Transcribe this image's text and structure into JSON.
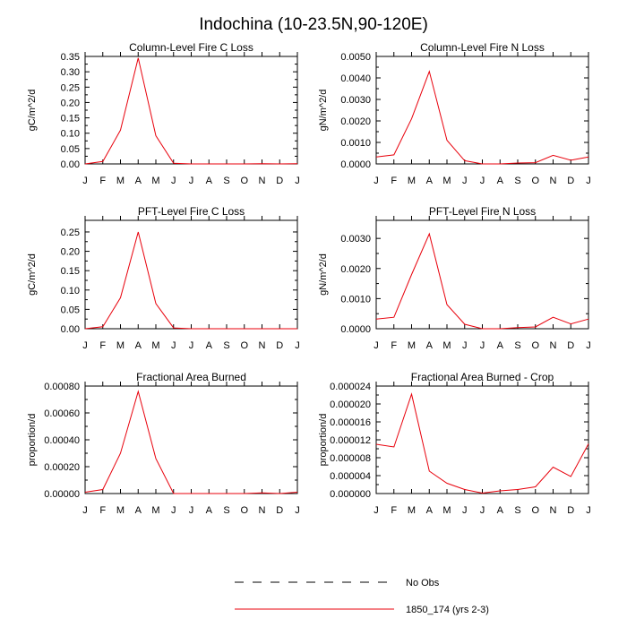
{
  "figure": {
    "title": "Indochina (10-23.5N,90-120E)",
    "legend": [
      {
        "label": "No Obs",
        "style": "dashed",
        "color": "#000000"
      },
      {
        "label": "1850_174 (yrs 2-3)",
        "style": "solid",
        "color": "#e8000b"
      }
    ]
  },
  "chart_data": [
    {
      "type": "line",
      "title": "Column-Level Fire C Loss",
      "xlabel": "",
      "ylabel": "gC/m^2/d",
      "categories": [
        "J",
        "F",
        "M",
        "A",
        "M",
        "J",
        "J",
        "A",
        "S",
        "O",
        "N",
        "D",
        "J"
      ],
      "ylim": [
        0,
        0.35
      ],
      "yticks": [
        0,
        0.05,
        0.1,
        0.15,
        0.2,
        0.25,
        0.3,
        0.35
      ],
      "ytick_labels": [
        "0.00",
        "0.05",
        "0.10",
        "0.15",
        "0.20",
        "0.25",
        "0.30",
        "0.35"
      ],
      "series": [
        {
          "name": "1850_174 (yrs 2-3)",
          "color": "#e8000b",
          "values": [
            0.0,
            0.008,
            0.11,
            0.345,
            0.092,
            0.002,
            0.0,
            0.0,
            0.0,
            0.0,
            0.001,
            0.0,
            0.001
          ]
        }
      ]
    },
    {
      "type": "line",
      "title": "Column-Level Fire N Loss",
      "xlabel": "",
      "ylabel": "gN/m^2/d",
      "categories": [
        "J",
        "F",
        "M",
        "A",
        "M",
        "J",
        "J",
        "A",
        "S",
        "O",
        "N",
        "D",
        "J"
      ],
      "ylim": [
        0,
        0.005
      ],
      "yticks": [
        0,
        0.001,
        0.002,
        0.003,
        0.004,
        0.005
      ],
      "ytick_labels": [
        "0.0000",
        "0.0010",
        "0.0020",
        "0.0030",
        "0.0040",
        "0.0050"
      ],
      "series": [
        {
          "name": "1850_174 (yrs 2-3)",
          "color": "#e8000b",
          "values": [
            0.00032,
            0.00042,
            0.0021,
            0.0043,
            0.0011,
            0.00015,
            0.0,
            0.0,
            4e-05,
            6e-05,
            0.0004,
            0.00017,
            0.00032
          ]
        }
      ]
    },
    {
      "type": "line",
      "title": "PFT-Level Fire C Loss",
      "xlabel": "",
      "ylabel": "gC/m^2/d",
      "categories": [
        "J",
        "F",
        "M",
        "A",
        "M",
        "J",
        "J",
        "A",
        "S",
        "O",
        "N",
        "D",
        "J"
      ],
      "ylim": [
        0,
        0.28
      ],
      "yticks": [
        0,
        0.05,
        0.1,
        0.15,
        0.2,
        0.25
      ],
      "ytick_labels": [
        "0.00",
        "0.05",
        "0.10",
        "0.15",
        "0.20",
        "0.25"
      ],
      "series": [
        {
          "name": "1850_174 (yrs 2-3)",
          "color": "#e8000b",
          "values": [
            0.0,
            0.005,
            0.08,
            0.25,
            0.065,
            0.002,
            0.0,
            0.0,
            0.0,
            0.0,
            0.0,
            0.0,
            0.0
          ]
        }
      ]
    },
    {
      "type": "line",
      "title": "PFT-Level Fire N Loss",
      "xlabel": "",
      "ylabel": "gN/m^2/d",
      "categories": [
        "J",
        "F",
        "M",
        "A",
        "M",
        "J",
        "J",
        "A",
        "S",
        "O",
        "N",
        "D",
        "J"
      ],
      "ylim": [
        0,
        0.0036
      ],
      "yticks": [
        0,
        0.001,
        0.002,
        0.003
      ],
      "ytick_labels": [
        "0.0000",
        "0.0010",
        "0.0020",
        "0.0030"
      ],
      "series": [
        {
          "name": "1850_174 (yrs 2-3)",
          "color": "#e8000b",
          "values": [
            0.00032,
            0.00038,
            0.0018,
            0.00315,
            0.0008,
            0.00015,
            0.0,
            0.0,
            4e-05,
            6e-05,
            0.00038,
            0.00016,
            0.00032
          ]
        }
      ]
    },
    {
      "type": "line",
      "title": "Fractional Area Burned",
      "xlabel": "",
      "ylabel": "proportion/d",
      "categories": [
        "J",
        "F",
        "M",
        "A",
        "M",
        "J",
        "J",
        "A",
        "S",
        "O",
        "N",
        "D",
        "J"
      ],
      "ylim": [
        0,
        0.0008
      ],
      "yticks": [
        0,
        0.0002,
        0.0004,
        0.0006,
        0.0008
      ],
      "ytick_labels": [
        "0.00000",
        "0.00020",
        "0.00040",
        "0.00060",
        "0.00080"
      ],
      "series": [
        {
          "name": "1850_174 (yrs 2-3)",
          "color": "#e8000b",
          "values": [
            1e-05,
            3e-05,
            0.0003,
            0.00076,
            0.00026,
            0.0,
            0.0,
            0.0,
            0.0,
            0.0,
            5e-06,
            0.0,
            1e-05
          ]
        }
      ]
    },
    {
      "type": "line",
      "title": "Fractional Area Burned - Crop",
      "xlabel": "",
      "ylabel": "proportion/d",
      "categories": [
        "J",
        "F",
        "M",
        "A",
        "M",
        "J",
        "J",
        "A",
        "S",
        "O",
        "N",
        "D",
        "J"
      ],
      "ylim": [
        0,
        2.4e-05
      ],
      "yticks": [
        0,
        4e-06,
        8e-06,
        1.2e-05,
        1.6e-05,
        2e-05,
        2.4e-05
      ],
      "ytick_labels": [
        "0.000000",
        "0.000004",
        "0.000008",
        "0.000012",
        "0.000016",
        "0.000020",
        "0.000024"
      ],
      "series": [
        {
          "name": "1850_174 (yrs 2-3)",
          "color": "#e8000b",
          "values": [
            1.1e-05,
            1.04e-05,
            2.22e-05,
            5e-06,
            2.3e-06,
            9e-07,
            1e-07,
            6e-07,
            9e-07,
            1.5e-06,
            5.9e-06,
            3.8e-06,
            1.11e-05
          ]
        }
      ]
    }
  ]
}
